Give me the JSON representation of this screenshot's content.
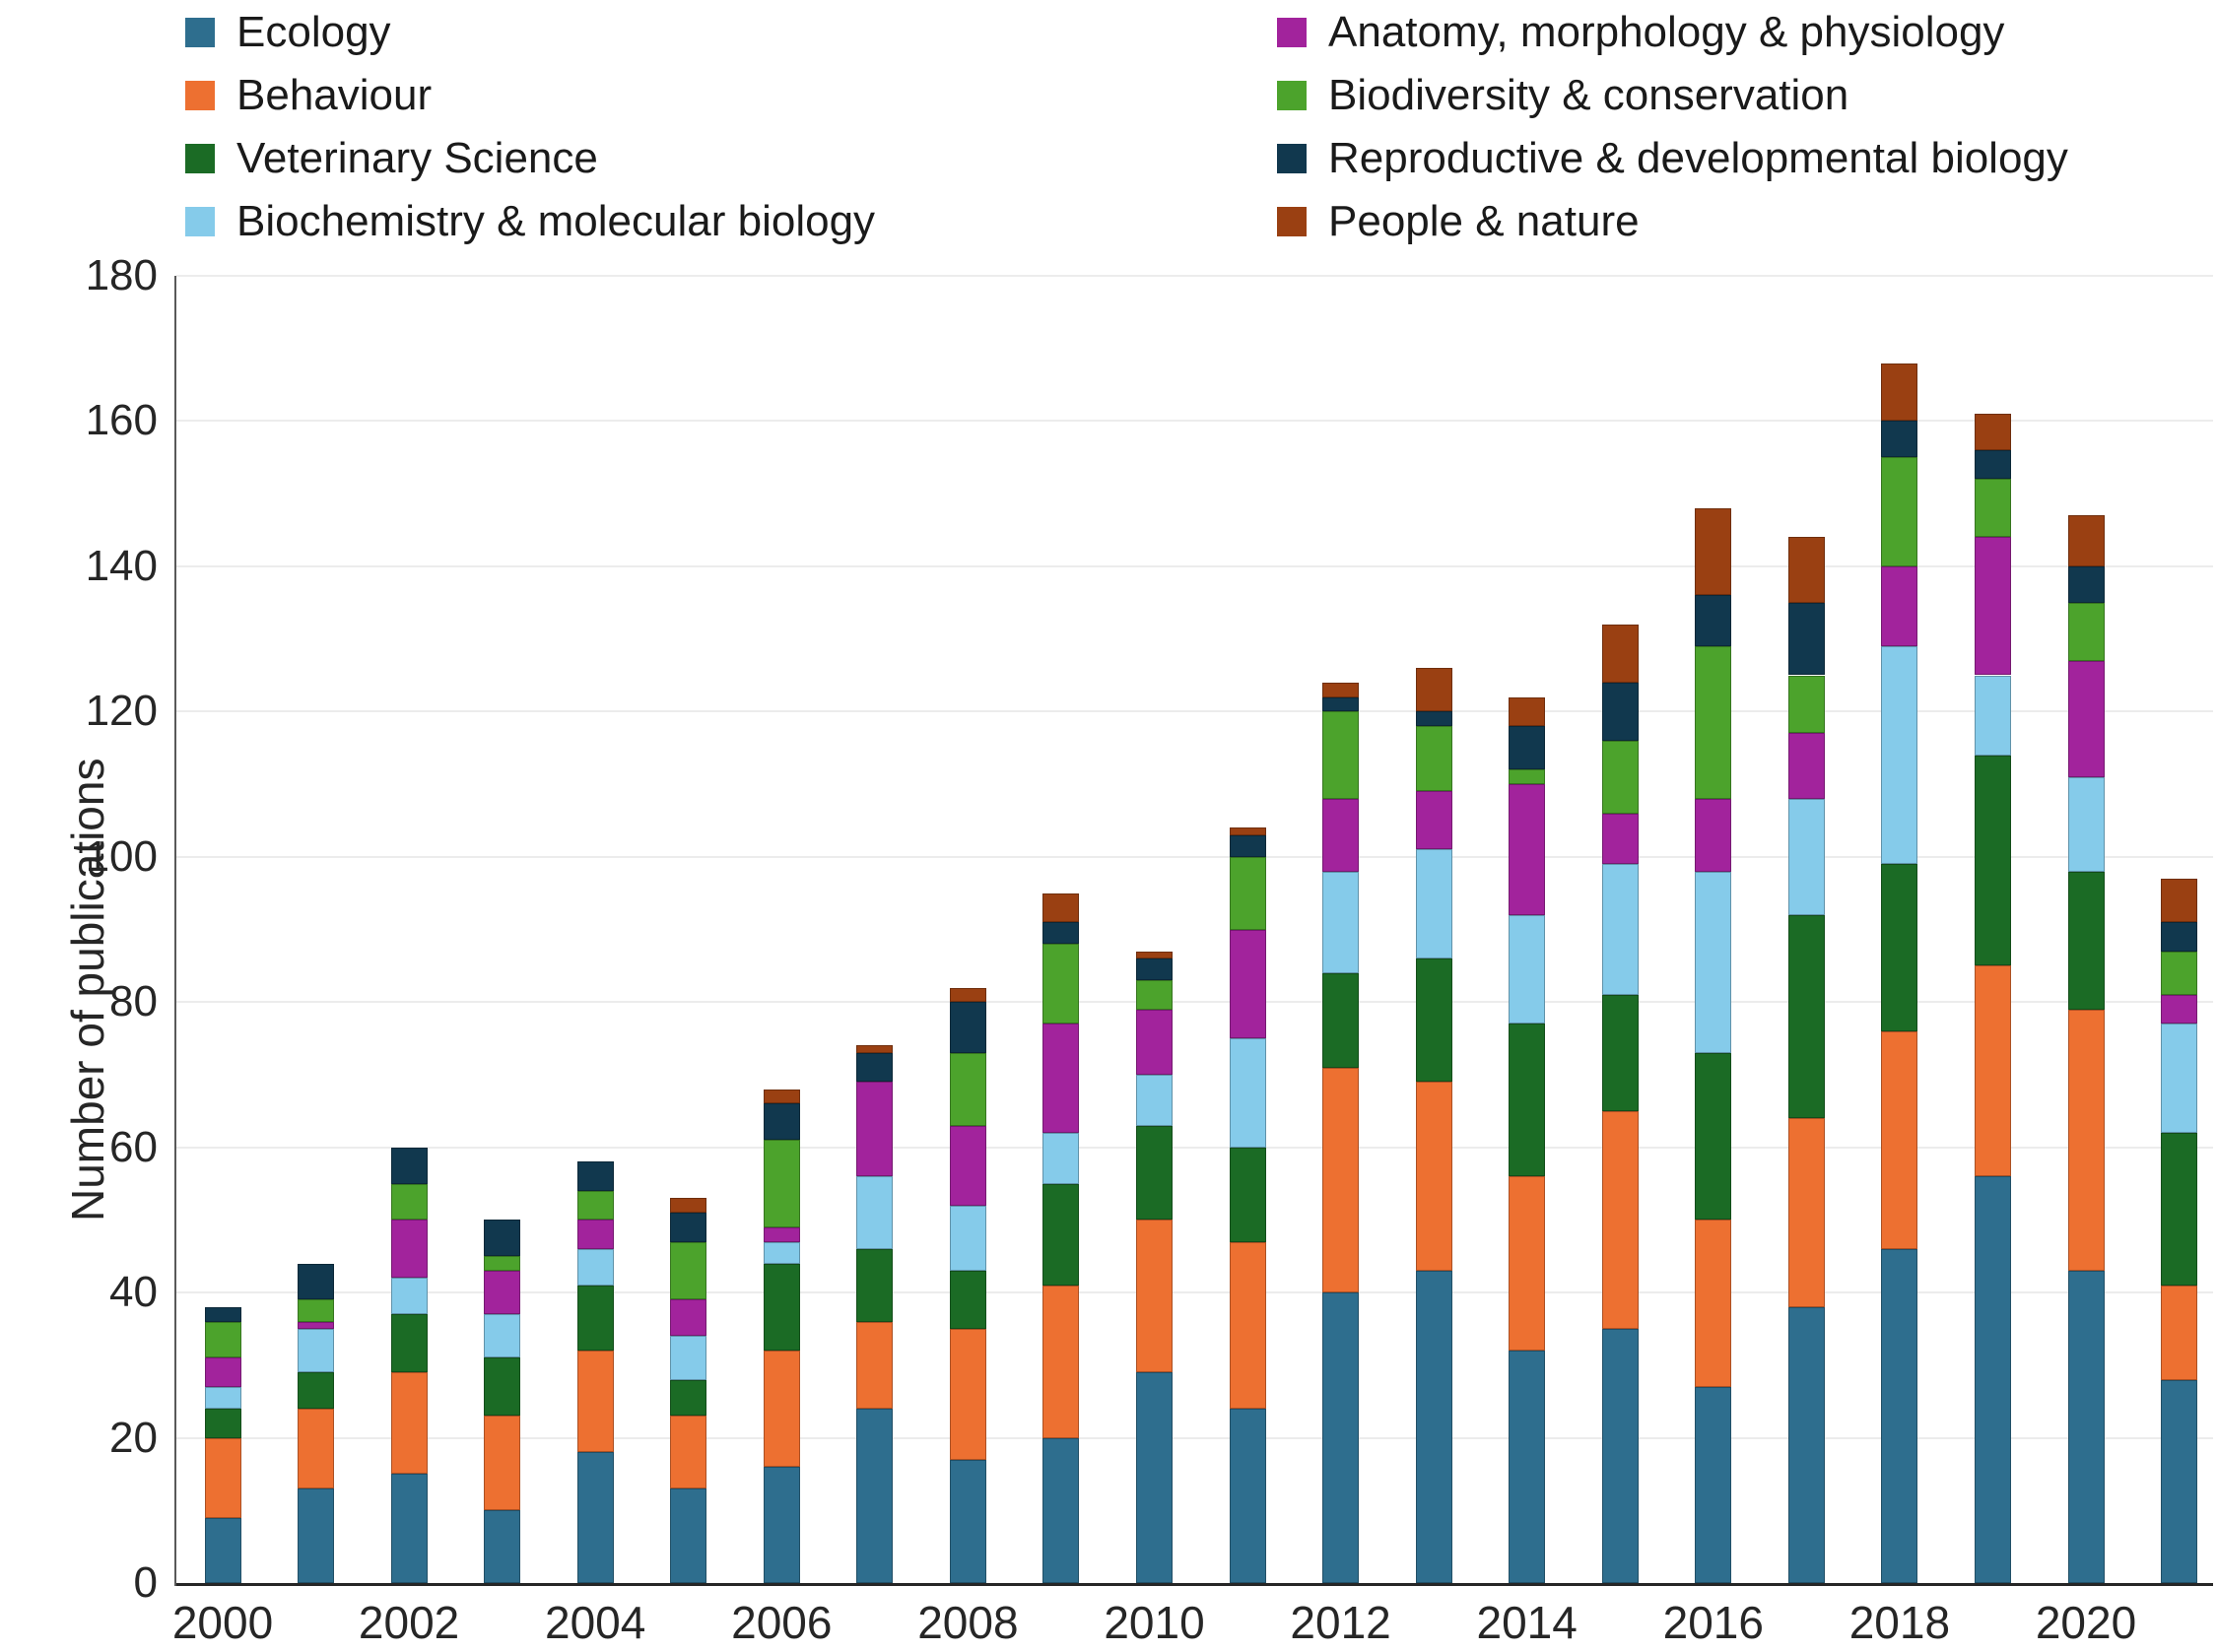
{
  "figure": {
    "y_axis_title": "Number of publications"
  },
  "legend": {
    "columns": [
      [
        "Ecology",
        "Behaviour",
        "Veterinary Science",
        "Biochemistry & molecular biology"
      ],
      [
        "Anatomy, morphology & physiology",
        "Biodiversity & conservation",
        "Reproductive & developmental biology",
        "People & nature"
      ]
    ]
  },
  "chart_data": {
    "type": "bar",
    "stacked": true,
    "title": "",
    "xlabel": "",
    "ylabel": "Number of publications",
    "ylim": [
      0,
      180
    ],
    "yticks": [
      0,
      20,
      40,
      60,
      80,
      100,
      120,
      140,
      160,
      180
    ],
    "grid": true,
    "legend_position": "top",
    "categories": [
      2000,
      2001,
      2002,
      2003,
      2004,
      2005,
      2006,
      2007,
      2008,
      2009,
      2010,
      2011,
      2012,
      2013,
      2014,
      2015,
      2016,
      2017,
      2018,
      2019,
      2020,
      2021
    ],
    "xtick_labels_shown": [
      "2000",
      "2002",
      "2004",
      "2006",
      "2008",
      "2010",
      "2012",
      "2014",
      "2016",
      "2018",
      "2020"
    ],
    "series": [
      {
        "name": "Ecology",
        "color": "#2E6E8E",
        "values": [
          9,
          13,
          15,
          10,
          18,
          13,
          16,
          24,
          17,
          20,
          29,
          24,
          40,
          43,
          32,
          35,
          27,
          38,
          46,
          56,
          43,
          28
        ]
      },
      {
        "name": "Behaviour",
        "color": "#ED7031",
        "values": [
          11,
          11,
          14,
          13,
          14,
          10,
          16,
          12,
          18,
          21,
          21,
          23,
          31,
          26,
          24,
          30,
          23,
          26,
          30,
          29,
          36,
          13
        ]
      },
      {
        "name": "Veterinary Science",
        "color": "#1B6B25",
        "values": [
          4,
          5,
          8,
          8,
          9,
          5,
          12,
          10,
          8,
          14,
          13,
          13,
          13,
          17,
          21,
          16,
          23,
          28,
          23,
          29,
          19,
          21
        ]
      },
      {
        "name": "Biochemistry & molecular biology",
        "color": "#85CBEA",
        "values": [
          3,
          6,
          5,
          6,
          5,
          6,
          3,
          10,
          9,
          7,
          7,
          15,
          14,
          15,
          15,
          18,
          25,
          16,
          30,
          11,
          13,
          15
        ]
      },
      {
        "name": "Anatomy, morphology & physiology",
        "color": "#A2239C",
        "values": [
          4,
          1,
          8,
          6,
          4,
          5,
          2,
          13,
          11,
          15,
          9,
          15,
          10,
          8,
          18,
          7,
          10,
          9,
          11,
          19,
          16,
          4
        ]
      },
      {
        "name": "Biodiversity & conservation",
        "color": "#4CA32C",
        "values": [
          5,
          3,
          5,
          2,
          4,
          8,
          12,
          0,
          10,
          11,
          4,
          10,
          12,
          9,
          2,
          10,
          21,
          8,
          15,
          8,
          8,
          6
        ]
      },
      {
        "name": "Reproductive & developmental biology",
        "color": "#11384E",
        "values": [
          2,
          5,
          5,
          5,
          4,
          4,
          5,
          4,
          7,
          3,
          3,
          3,
          2,
          2,
          6,
          8,
          7,
          10,
          5,
          4,
          5,
          4
        ]
      },
      {
        "name": "People & nature",
        "color": "#9A4012",
        "values": [
          0,
          0,
          0,
          0,
          0,
          2,
          2,
          1,
          2,
          4,
          1,
          1,
          2,
          6,
          4,
          8,
          12,
          9,
          8,
          5,
          7,
          6
        ]
      }
    ],
    "totals": [
      38,
      44,
      60,
      50,
      58,
      53,
      68,
      74,
      82,
      95,
      87,
      104,
      124,
      126,
      122,
      132,
      148,
      144,
      168,
      161,
      147,
      97
    ]
  }
}
